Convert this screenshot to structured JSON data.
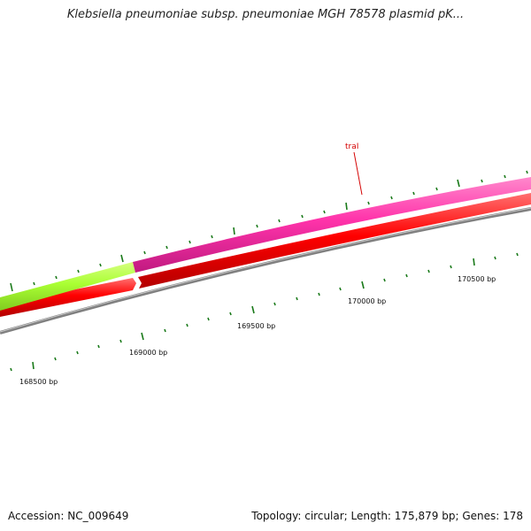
{
  "title": "Klebsiella pneumoniae subsp. pneumoniae MGH 78578 plasmid pK...",
  "footer": {
    "accession": "Accession: NC_009649",
    "summary": "Topology: circular; Length: 175,879 bp; Genes: 178"
  },
  "colors": {
    "backbone": "#808080",
    "backbone_light": "#c8c8c8",
    "tick": "#1a7a1a",
    "gene_red": "#ff0000",
    "gene_pink": "#ff33aa",
    "gene_green": "#aaff33",
    "label_red": "#d40000"
  },
  "map": {
    "tick_labels": [
      {
        "id": "t168500",
        "text": "168500 bp"
      },
      {
        "id": "t169000",
        "text": "169000 bp"
      },
      {
        "id": "t169500",
        "text": "169500 bp"
      },
      {
        "id": "t170000",
        "text": "170000 bp"
      },
      {
        "id": "t170500",
        "text": "170500 bp"
      }
    ],
    "gene_labels": [
      {
        "id": "traI",
        "text": "traI"
      }
    ]
  }
}
